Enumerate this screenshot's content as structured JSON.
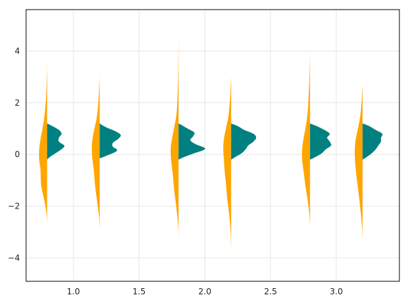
{
  "chart_data": {
    "type": "violin",
    "title": "",
    "xlabel": "",
    "ylabel": "",
    "xlim": [
      0.64,
      3.48
    ],
    "ylim": [
      -4.9,
      5.6
    ],
    "xticks": [
      1.0,
      1.5,
      2.0,
      2.5,
      3.0
    ],
    "xtick_labels": [
      "1.0",
      "1.5",
      "2.0",
      "2.5",
      "3.0"
    ],
    "yticks": [
      -4,
      -2,
      0,
      2,
      4
    ],
    "ytick_labels": [
      "−4",
      "−2",
      "0",
      "2",
      "4"
    ],
    "grid": true,
    "colors": {
      "left_half": "#FFA500",
      "right_half": "#008080",
      "grid": "#e6e6e6",
      "axes": "#000000"
    },
    "violins": [
      {
        "x": 0.8,
        "left": [
          [
            -2.7,
            0
          ],
          [
            -2.3,
            0.004
          ],
          [
            -1.8,
            0.02
          ],
          [
            -1.2,
            0.045
          ],
          [
            -0.6,
            0.05
          ],
          [
            -0.2,
            0.06
          ],
          [
            0.2,
            0.06
          ],
          [
            0.6,
            0.05
          ],
          [
            1.0,
            0.035
          ],
          [
            1.5,
            0.02
          ],
          [
            2.2,
            0.008
          ],
          [
            3.0,
            0.002
          ],
          [
            3.6,
            0
          ]
        ],
        "right": [
          [
            -0.2,
            0
          ],
          [
            -0.1,
            0.02
          ],
          [
            0.1,
            0.08
          ],
          [
            0.25,
            0.12
          ],
          [
            0.35,
            0.13
          ],
          [
            0.5,
            0.09
          ],
          [
            0.65,
            0.09
          ],
          [
            0.8,
            0.11
          ],
          [
            0.95,
            0.09
          ],
          [
            1.1,
            0.04
          ],
          [
            1.2,
            0
          ]
        ]
      },
      {
        "x": 1.2,
        "left": [
          [
            -2.9,
            0
          ],
          [
            -2.4,
            0.005
          ],
          [
            -1.8,
            0.02
          ],
          [
            -1.2,
            0.035
          ],
          [
            -0.6,
            0.045
          ],
          [
            -0.2,
            0.055
          ],
          [
            0.2,
            0.06
          ],
          [
            0.6,
            0.055
          ],
          [
            1.0,
            0.04
          ],
          [
            1.5,
            0.02
          ],
          [
            2.2,
            0.008
          ],
          [
            3.0,
            0
          ]
        ],
        "right": [
          [
            -0.15,
            0
          ],
          [
            -0.05,
            0.05
          ],
          [
            0.1,
            0.12
          ],
          [
            0.2,
            0.13
          ],
          [
            0.3,
            0.1
          ],
          [
            0.45,
            0.1
          ],
          [
            0.6,
            0.14
          ],
          [
            0.75,
            0.16
          ],
          [
            0.9,
            0.12
          ],
          [
            1.05,
            0.05
          ],
          [
            1.2,
            0
          ]
        ]
      },
      {
        "x": 1.8,
        "left": [
          [
            -3.2,
            0
          ],
          [
            -2.7,
            0.004
          ],
          [
            -2.0,
            0.018
          ],
          [
            -1.3,
            0.035
          ],
          [
            -0.7,
            0.045
          ],
          [
            -0.3,
            0.055
          ],
          [
            0.2,
            0.06
          ],
          [
            0.6,
            0.05
          ],
          [
            1.0,
            0.035
          ],
          [
            1.6,
            0.015
          ],
          [
            2.5,
            0.006
          ],
          [
            3.5,
            0.002
          ],
          [
            4.5,
            0
          ]
        ],
        "right": [
          [
            -0.2,
            0
          ],
          [
            -0.1,
            0.04
          ],
          [
            0.05,
            0.12
          ],
          [
            0.15,
            0.18
          ],
          [
            0.25,
            0.2
          ],
          [
            0.4,
            0.13
          ],
          [
            0.55,
            0.09
          ],
          [
            0.7,
            0.11
          ],
          [
            0.85,
            0.12
          ],
          [
            1.0,
            0.07
          ],
          [
            1.15,
            0.02
          ],
          [
            1.2,
            0
          ]
        ]
      },
      {
        "x": 2.2,
        "left": [
          [
            -3.7,
            0
          ],
          [
            -3.0,
            0.004
          ],
          [
            -2.3,
            0.015
          ],
          [
            -1.7,
            0.03
          ],
          [
            -1.1,
            0.04
          ],
          [
            -0.6,
            0.05
          ],
          [
            -0.2,
            0.055
          ],
          [
            0.2,
            0.06
          ],
          [
            0.6,
            0.055
          ],
          [
            1.0,
            0.04
          ],
          [
            1.5,
            0.02
          ],
          [
            2.2,
            0.008
          ],
          [
            3.0,
            0
          ]
        ],
        "right": [
          [
            -0.2,
            0
          ],
          [
            -0.1,
            0.03
          ],
          [
            0.05,
            0.08
          ],
          [
            0.2,
            0.11
          ],
          [
            0.35,
            0.13
          ],
          [
            0.5,
            0.17
          ],
          [
            0.65,
            0.19
          ],
          [
            0.8,
            0.17
          ],
          [
            0.95,
            0.1
          ],
          [
            1.1,
            0.05
          ],
          [
            1.2,
            0
          ]
        ]
      },
      {
        "x": 2.8,
        "left": [
          [
            -2.8,
            0
          ],
          [
            -2.3,
            0.005
          ],
          [
            -1.7,
            0.02
          ],
          [
            -1.2,
            0.035
          ],
          [
            -0.6,
            0.05
          ],
          [
            -0.2,
            0.06
          ],
          [
            0.2,
            0.06
          ],
          [
            0.6,
            0.05
          ],
          [
            1.0,
            0.035
          ],
          [
            1.6,
            0.018
          ],
          [
            2.5,
            0.008
          ],
          [
            3.2,
            0.003
          ],
          [
            3.9,
            0
          ]
        ],
        "right": [
          [
            -0.2,
            0
          ],
          [
            -0.1,
            0.04
          ],
          [
            0.05,
            0.09
          ],
          [
            0.2,
            0.12
          ],
          [
            0.35,
            0.16
          ],
          [
            0.5,
            0.15
          ],
          [
            0.65,
            0.13
          ],
          [
            0.8,
            0.15
          ],
          [
            0.95,
            0.11
          ],
          [
            1.1,
            0.05
          ],
          [
            1.2,
            0
          ]
        ]
      },
      {
        "x": 3.2,
        "left": [
          [
            -3.3,
            0
          ],
          [
            -2.8,
            0.004
          ],
          [
            -2.2,
            0.015
          ],
          [
            -1.5,
            0.03
          ],
          [
            -0.9,
            0.045
          ],
          [
            -0.4,
            0.055
          ],
          [
            0.1,
            0.06
          ],
          [
            0.5,
            0.055
          ],
          [
            0.9,
            0.04
          ],
          [
            1.4,
            0.02
          ],
          [
            2.0,
            0.008
          ],
          [
            2.7,
            0
          ]
        ],
        "right": [
          [
            -0.2,
            0
          ],
          [
            -0.1,
            0.03
          ],
          [
            0.05,
            0.07
          ],
          [
            0.2,
            0.1
          ],
          [
            0.35,
            0.12
          ],
          [
            0.5,
            0.14
          ],
          [
            0.65,
            0.14
          ],
          [
            0.8,
            0.15
          ],
          [
            0.95,
            0.1
          ],
          [
            1.1,
            0.05
          ],
          [
            1.2,
            0
          ]
        ]
      }
    ]
  }
}
